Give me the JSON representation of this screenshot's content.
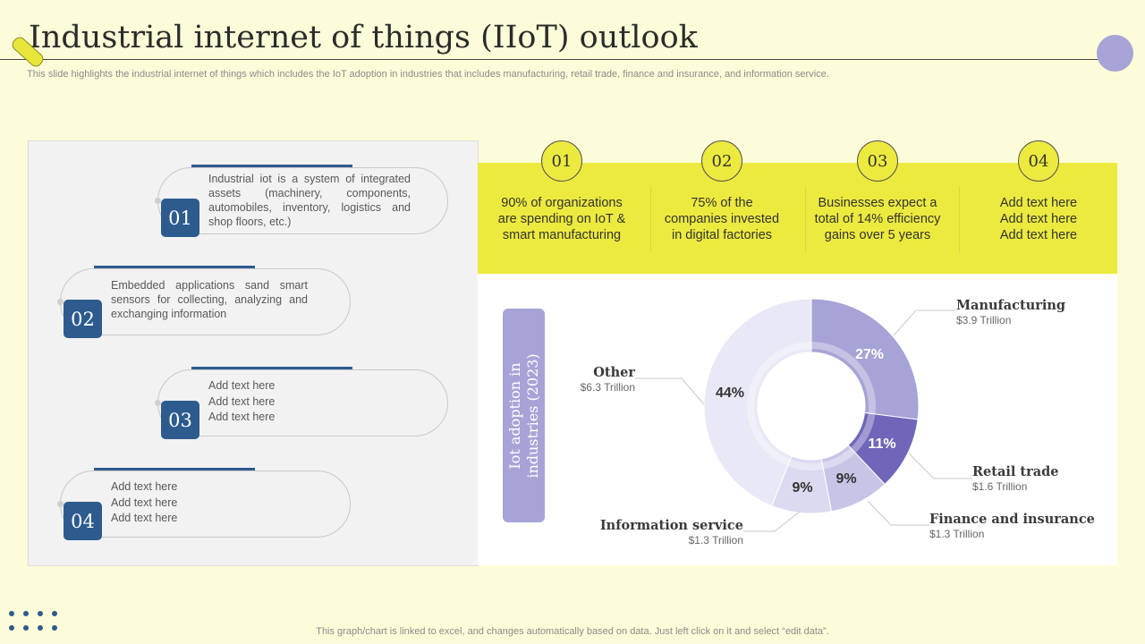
{
  "slide": {
    "title": "Industrial internet of things (IIoT) outlook",
    "subtitle": "This slide highlights the industrial internet of things which includes the IoT adoption in industries that includes manufacturing, retail trade, finance and insurance, and information service.",
    "footnote": "This graph/chart is linked to excel, and changes automatically based on data. Just left click on it and select “edit data”."
  },
  "steps": [
    {
      "num": "01",
      "text": "Industrial iot is a system of integrated assets (machinery, components, automobiles, inventory, logistics and shop floors, etc.)"
    },
    {
      "num": "02",
      "text": "Embedded applications sand smart sensors for collecting, analyzing and exchanging information"
    },
    {
      "num": "03",
      "lines": [
        "Add text here",
        "Add text here",
        "Add text here"
      ]
    },
    {
      "num": "04",
      "lines": [
        "Add text here",
        "Add text here",
        "Add text here"
      ]
    }
  ],
  "stats": [
    {
      "num": "01",
      "lines": [
        "90% of organizations",
        "are spending on IoT &",
        "smart manufacturing"
      ]
    },
    {
      "num": "02",
      "lines": [
        "75% of the",
        "companies invested",
        "in digital factories"
      ]
    },
    {
      "num": "03",
      "lines": [
        "Businesses expect a",
        "total of 14% efficiency",
        "gains over 5 years"
      ]
    },
    {
      "num": "04",
      "lines": [
        "Add text here",
        "Add text here",
        "Add text here"
      ]
    }
  ],
  "chart_label_lines": [
    "Iot adoption in",
    "industries (2023)"
  ],
  "colors": {
    "accent_yellow": "#ecea3f",
    "step_blue": "#2d5b8e",
    "lavender": "#a6a3d6"
  },
  "chart_data": {
    "type": "pie",
    "title": "Iot adoption in industries (2023)",
    "slices": [
      {
        "name": "Manufacturing",
        "value_label": "$3.9 Trillion",
        "value": 3.9,
        "percent": 27,
        "percent_label": "27%",
        "color": "#a6a3d6"
      },
      {
        "name": "Retail trade",
        "value_label": "$1.6 Trillion",
        "value": 1.6,
        "percent": 11,
        "percent_label": "11%",
        "color": "#6e66b8"
      },
      {
        "name": "Finance and insurance",
        "value_label": "$1.3 Trillion",
        "value": 1.3,
        "percent": 9,
        "percent_label": "9%",
        "color": "#c7c5e6"
      },
      {
        "name": "Information service",
        "value_label": "$1.3 Trillion",
        "value": 1.3,
        "percent": 9,
        "percent_label": "9%",
        "color": "#dcdaf0"
      },
      {
        "name": "Other",
        "value_label": "$6.3 Trillion",
        "value": 6.3,
        "percent": 44,
        "percent_label": "44%",
        "color": "#e9e8f6"
      }
    ]
  }
}
